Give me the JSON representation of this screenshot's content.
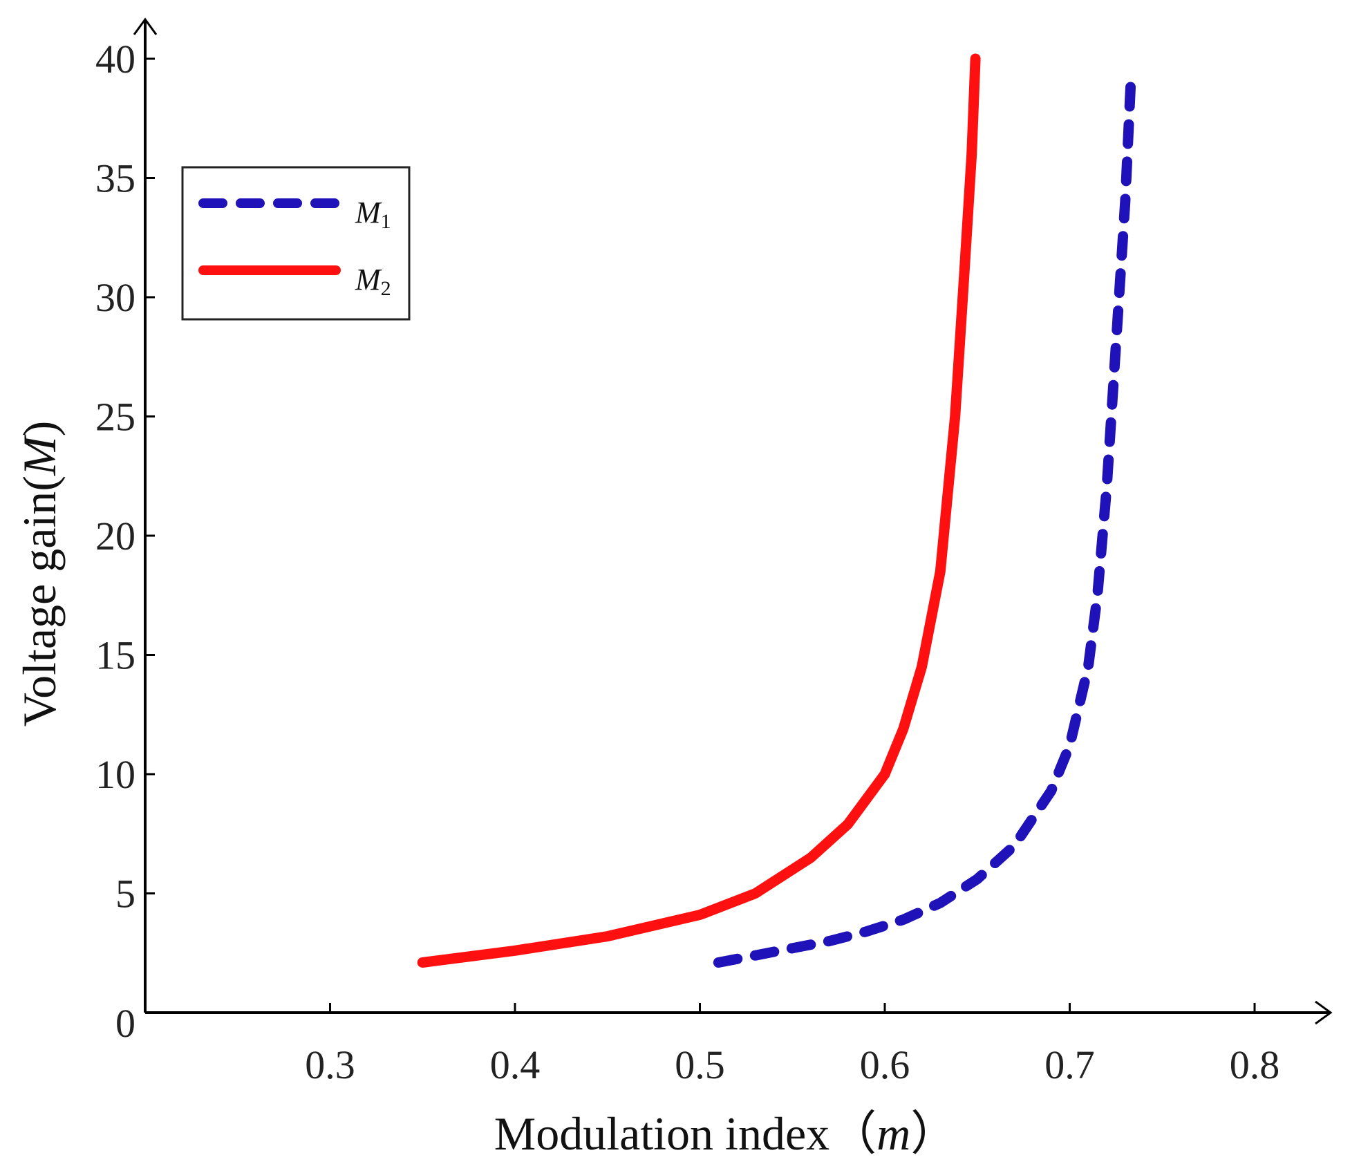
{
  "chart_data": {
    "type": "line",
    "xlabel": "Modulation index（m）",
    "xlabel_parts": {
      "before": "Modulation index（",
      "italic": "m",
      "after": "）"
    },
    "ylabel": "Voltage gain(M)",
    "ylabel_parts": {
      "before": "Voltage gain(",
      "italic": "M",
      "after": ")"
    },
    "xlim": [
      0.2,
      0.82
    ],
    "ylim": [
      0,
      41
    ],
    "x_ticks": [
      0.3,
      0.4,
      0.5,
      0.6,
      0.7,
      0.8
    ],
    "x_tick_labels": [
      "0.3",
      "0.4",
      "0.5",
      "0.6",
      "0.7",
      "0.8"
    ],
    "y_ticks": [
      0,
      5,
      10,
      15,
      20,
      25,
      30,
      35,
      40
    ],
    "y_tick_labels": [
      "0",
      "5",
      "10",
      "15",
      "20",
      "25",
      "30",
      "35",
      "40"
    ],
    "grid": false,
    "legend_position": "top-left",
    "series": [
      {
        "name": "M1",
        "legend_main": "M",
        "legend_sub": "1",
        "color": "#1f12b8",
        "style": "dashed",
        "x": [
          0.51,
          0.53,
          0.55,
          0.57,
          0.59,
          0.61,
          0.63,
          0.65,
          0.67,
          0.69,
          0.7,
          0.71,
          0.715,
          0.72,
          0.725,
          0.73,
          0.733
        ],
        "y": [
          2.1,
          2.4,
          2.7,
          3.0,
          3.4,
          3.9,
          4.6,
          5.6,
          7.0,
          9.3,
          11.2,
          14.5,
          17.5,
          22.0,
          28.0,
          34.0,
          39.0
        ]
      },
      {
        "name": "M2",
        "legend_main": "M",
        "legend_sub": "2",
        "color": "#ff1010",
        "style": "solid",
        "x": [
          0.35,
          0.4,
          0.45,
          0.5,
          0.53,
          0.56,
          0.58,
          0.6,
          0.61,
          0.62,
          0.63,
          0.638,
          0.643,
          0.647,
          0.649
        ],
        "y": [
          2.1,
          2.6,
          3.2,
          4.1,
          5.0,
          6.5,
          7.9,
          10.0,
          11.9,
          14.5,
          18.5,
          25.0,
          31.0,
          36.0,
          40.0
        ]
      }
    ]
  }
}
